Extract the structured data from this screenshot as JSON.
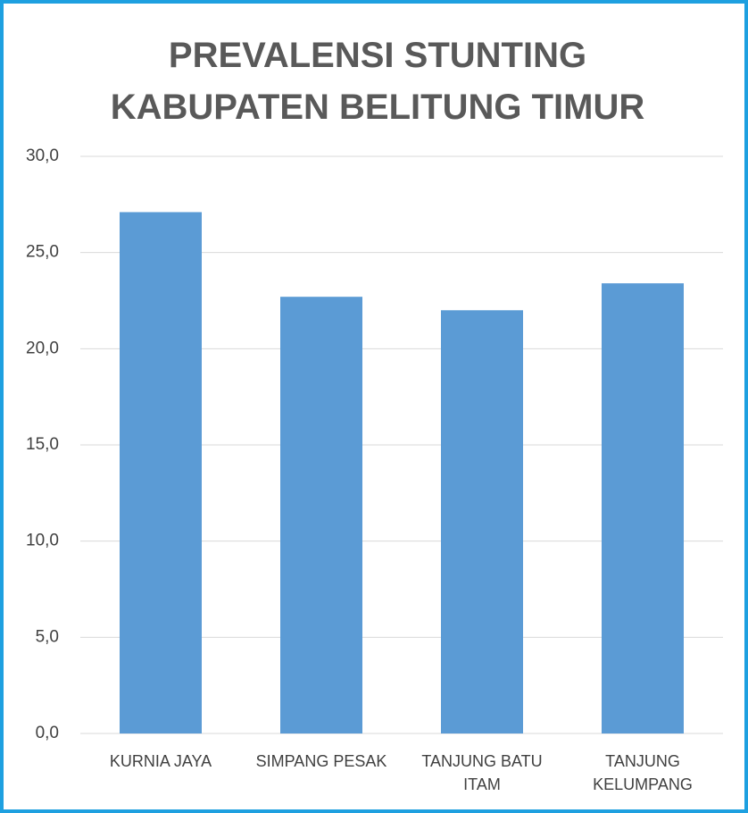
{
  "chart_data": {
    "type": "bar",
    "title": [
      "PREVALENSI STUNTING",
      "KABUPATEN BELITUNG TIMUR"
    ],
    "categories": [
      "KURNIA JAYA",
      "SIMPANG PESAK",
      "TANJUNG BATU ITAM",
      "TANJUNG KELUMPANG"
    ],
    "values": [
      27.1,
      22.7,
      22.0,
      23.4
    ],
    "color": "#5b9bd5",
    "ylim": [
      0,
      30
    ],
    "yticks": [
      {
        "value": 0,
        "label": "0,0"
      },
      {
        "value": 5,
        "label": "5,0"
      },
      {
        "value": 10,
        "label": "10,0"
      },
      {
        "value": 15,
        "label": "15,0"
      },
      {
        "value": 20,
        "label": "20,0"
      },
      {
        "value": 25,
        "label": "25,0"
      },
      {
        "value": 30,
        "label": "30,0"
      }
    ],
    "grid": true
  }
}
